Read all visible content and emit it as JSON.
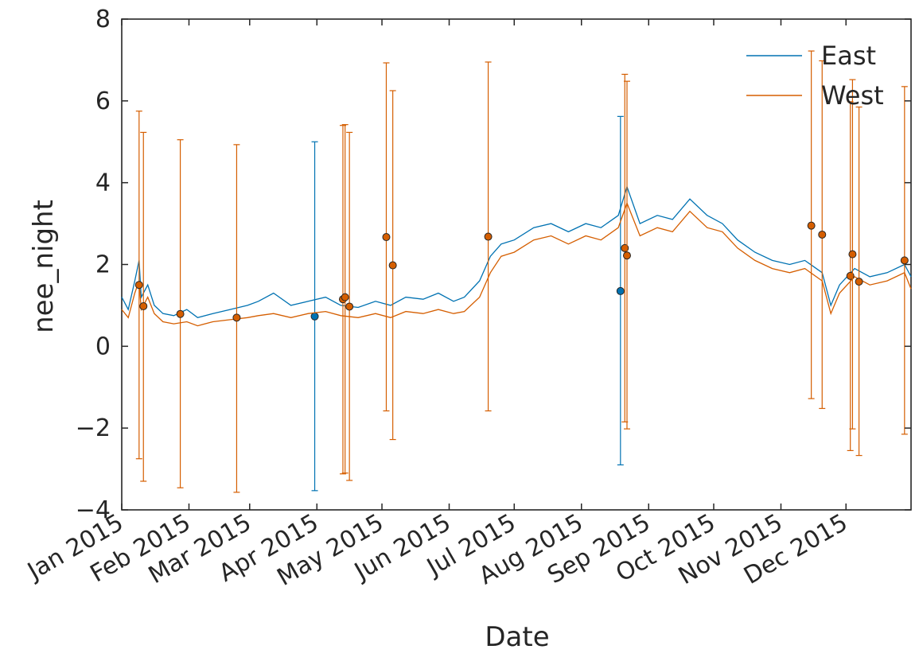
{
  "chart_data": {
    "type": "line",
    "title": "",
    "xlabel": "Date",
    "ylabel": "nee_night",
    "xlim": [
      "2015-01-01",
      "2015-12-31"
    ],
    "ylim": [
      -4,
      8
    ],
    "y_ticks": [
      -4,
      -2,
      0,
      2,
      4,
      6,
      8
    ],
    "y_tick_labels": [
      "−4",
      "−2",
      "0",
      "2",
      "4",
      "6",
      "8"
    ],
    "x_ticks": [
      "2015-01-01",
      "2015-02-01",
      "2015-03-01",
      "2015-04-01",
      "2015-05-01",
      "2015-06-01",
      "2015-07-01",
      "2015-08-01",
      "2015-09-01",
      "2015-10-01",
      "2015-11-01",
      "2015-12-01"
    ],
    "x_tick_labels": [
      "Jan 2015",
      "Feb 2015",
      "Mar 2015",
      "Apr 2015",
      "May 2015",
      "Jun 2015",
      "Jul 2015",
      "Aug 2015",
      "Sep 2015",
      "Oct 2015",
      "Nov 2015",
      "Dec 2015"
    ],
    "grid": false,
    "legend_position": "top-right",
    "series": [
      {
        "name": "East",
        "color": "#0072b2",
        "values_note": "daily line",
        "line": [
          [
            "2015-01-01",
            1.2
          ],
          [
            "2015-01-04",
            0.9
          ],
          [
            "2015-01-07",
            1.6
          ],
          [
            "2015-01-09",
            2.1
          ],
          [
            "2015-01-10",
            1.2
          ],
          [
            "2015-01-13",
            1.5
          ],
          [
            "2015-01-16",
            1.0
          ],
          [
            "2015-01-20",
            0.8
          ],
          [
            "2015-01-25",
            0.75
          ],
          [
            "2015-01-31",
            0.9
          ],
          [
            "2015-02-05",
            0.7
          ],
          [
            "2015-02-12",
            0.8
          ],
          [
            "2015-02-20",
            0.9
          ],
          [
            "2015-02-28",
            1.0
          ],
          [
            "2015-03-05",
            1.1
          ],
          [
            "2015-03-12",
            1.3
          ],
          [
            "2015-03-20",
            1.0
          ],
          [
            "2015-03-28",
            1.1
          ],
          [
            "2015-04-05",
            1.2
          ],
          [
            "2015-04-12",
            1.0
          ],
          [
            "2015-04-20",
            0.95
          ],
          [
            "2015-04-28",
            1.1
          ],
          [
            "2015-05-05",
            1.0
          ],
          [
            "2015-05-12",
            1.2
          ],
          [
            "2015-05-20",
            1.15
          ],
          [
            "2015-05-27",
            1.3
          ],
          [
            "2015-06-03",
            1.1
          ],
          [
            "2015-06-08",
            1.2
          ],
          [
            "2015-06-15",
            1.6
          ],
          [
            "2015-06-20",
            2.2
          ],
          [
            "2015-06-25",
            2.5
          ],
          [
            "2015-07-01",
            2.6
          ],
          [
            "2015-07-10",
            2.9
          ],
          [
            "2015-07-18",
            3.0
          ],
          [
            "2015-07-26",
            2.8
          ],
          [
            "2015-08-03",
            3.0
          ],
          [
            "2015-08-10",
            2.9
          ],
          [
            "2015-08-18",
            3.2
          ],
          [
            "2015-08-22",
            3.9
          ],
          [
            "2015-08-28",
            3.0
          ],
          [
            "2015-09-05",
            3.2
          ],
          [
            "2015-09-12",
            3.1
          ],
          [
            "2015-09-20",
            3.6
          ],
          [
            "2015-09-28",
            3.2
          ],
          [
            "2015-10-05",
            3.0
          ],
          [
            "2015-10-12",
            2.6
          ],
          [
            "2015-10-20",
            2.3
          ],
          [
            "2015-10-28",
            2.1
          ],
          [
            "2015-11-05",
            2.0
          ],
          [
            "2015-11-12",
            2.1
          ],
          [
            "2015-11-20",
            1.8
          ],
          [
            "2015-11-24",
            1.0
          ],
          [
            "2015-11-28",
            1.5
          ],
          [
            "2015-12-05",
            1.9
          ],
          [
            "2015-12-12",
            1.7
          ],
          [
            "2015-12-20",
            1.8
          ],
          [
            "2015-12-28",
            2.0
          ],
          [
            "2015-12-31",
            1.7
          ]
        ],
        "points": [
          {
            "x": "2015-03-31",
            "y": 0.73,
            "yerr_low": -3.53,
            "yerr_high": 5.0
          },
          {
            "x": "2015-08-19",
            "y": 1.35,
            "yerr_low": -2.9,
            "yerr_high": 5.62
          }
        ]
      },
      {
        "name": "West",
        "color": "#d55e00",
        "values_note": "daily line",
        "line": [
          [
            "2015-01-01",
            0.9
          ],
          [
            "2015-01-04",
            0.7
          ],
          [
            "2015-01-07",
            1.3
          ],
          [
            "2015-01-09",
            1.6
          ],
          [
            "2015-01-10",
            0.9
          ],
          [
            "2015-01-13",
            1.2
          ],
          [
            "2015-01-16",
            0.8
          ],
          [
            "2015-01-20",
            0.6
          ],
          [
            "2015-01-25",
            0.55
          ],
          [
            "2015-01-31",
            0.6
          ],
          [
            "2015-02-05",
            0.5
          ],
          [
            "2015-02-12",
            0.6
          ],
          [
            "2015-02-20",
            0.65
          ],
          [
            "2015-02-28",
            0.7
          ],
          [
            "2015-03-05",
            0.75
          ],
          [
            "2015-03-12",
            0.8
          ],
          [
            "2015-03-20",
            0.7
          ],
          [
            "2015-03-28",
            0.8
          ],
          [
            "2015-04-05",
            0.85
          ],
          [
            "2015-04-12",
            0.75
          ],
          [
            "2015-04-20",
            0.7
          ],
          [
            "2015-04-28",
            0.8
          ],
          [
            "2015-05-05",
            0.7
          ],
          [
            "2015-05-12",
            0.85
          ],
          [
            "2015-05-20",
            0.8
          ],
          [
            "2015-05-27",
            0.9
          ],
          [
            "2015-06-03",
            0.8
          ],
          [
            "2015-06-08",
            0.85
          ],
          [
            "2015-06-15",
            1.2
          ],
          [
            "2015-06-20",
            1.8
          ],
          [
            "2015-06-25",
            2.2
          ],
          [
            "2015-07-01",
            2.3
          ],
          [
            "2015-07-10",
            2.6
          ],
          [
            "2015-07-18",
            2.7
          ],
          [
            "2015-07-26",
            2.5
          ],
          [
            "2015-08-03",
            2.7
          ],
          [
            "2015-08-10",
            2.6
          ],
          [
            "2015-08-18",
            2.9
          ],
          [
            "2015-08-22",
            3.5
          ],
          [
            "2015-08-28",
            2.7
          ],
          [
            "2015-09-05",
            2.9
          ],
          [
            "2015-09-12",
            2.8
          ],
          [
            "2015-09-20",
            3.3
          ],
          [
            "2015-09-28",
            2.9
          ],
          [
            "2015-10-05",
            2.8
          ],
          [
            "2015-10-12",
            2.4
          ],
          [
            "2015-10-20",
            2.1
          ],
          [
            "2015-10-28",
            1.9
          ],
          [
            "2015-11-05",
            1.8
          ],
          [
            "2015-11-12",
            1.9
          ],
          [
            "2015-11-20",
            1.6
          ],
          [
            "2015-11-24",
            0.8
          ],
          [
            "2015-11-28",
            1.3
          ],
          [
            "2015-12-05",
            1.7
          ],
          [
            "2015-12-12",
            1.5
          ],
          [
            "2015-12-20",
            1.6
          ],
          [
            "2015-12-28",
            1.8
          ],
          [
            "2015-12-31",
            1.4
          ]
        ],
        "points": [
          {
            "x": "2015-01-09",
            "y": 1.5,
            "yerr_low": -2.75,
            "yerr_high": 5.75
          },
          {
            "x": "2015-01-11",
            "y": 0.98,
            "yerr_low": -3.3,
            "yerr_high": 5.23
          },
          {
            "x": "2015-01-28",
            "y": 0.79,
            "yerr_low": -3.46,
            "yerr_high": 5.05
          },
          {
            "x": "2015-02-23",
            "y": 0.7,
            "yerr_low": -3.57,
            "yerr_high": 4.93
          },
          {
            "x": "2015-04-13",
            "y": 1.15,
            "yerr_low": -3.12,
            "yerr_high": 5.4
          },
          {
            "x": "2015-04-14",
            "y": 1.2,
            "yerr_low": -3.1,
            "yerr_high": 5.42
          },
          {
            "x": "2015-04-16",
            "y": 0.97,
            "yerr_low": -3.28,
            "yerr_high": 5.23
          },
          {
            "x": "2015-05-03",
            "y": 2.67,
            "yerr_low": -1.58,
            "yerr_high": 6.93
          },
          {
            "x": "2015-05-06",
            "y": 1.98,
            "yerr_low": -2.28,
            "yerr_high": 6.25
          },
          {
            "x": "2015-06-19",
            "y": 2.68,
            "yerr_low": -1.58,
            "yerr_high": 6.95
          },
          {
            "x": "2015-08-21",
            "y": 2.4,
            "yerr_low": -1.85,
            "yerr_high": 6.65
          },
          {
            "x": "2015-08-22",
            "y": 2.22,
            "yerr_low": -2.02,
            "yerr_high": 6.48
          },
          {
            "x": "2015-11-15",
            "y": 2.95,
            "yerr_low": -1.28,
            "yerr_high": 7.22
          },
          {
            "x": "2015-11-20",
            "y": 2.73,
            "yerr_low": -1.52,
            "yerr_high": 6.98
          },
          {
            "x": "2015-12-03",
            "y": 1.72,
            "yerr_low": -2.55,
            "yerr_high": 5.98
          },
          {
            "x": "2015-12-04",
            "y": 2.25,
            "yerr_low": -2.02,
            "yerr_high": 6.52
          },
          {
            "x": "2015-12-07",
            "y": 1.58,
            "yerr_low": -2.67,
            "yerr_high": 5.85
          },
          {
            "x": "2015-12-28",
            "y": 2.1,
            "yerr_low": -2.15,
            "yerr_high": 6.35
          }
        ]
      }
    ]
  }
}
